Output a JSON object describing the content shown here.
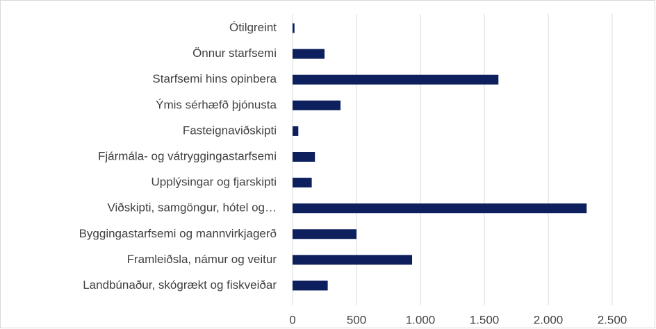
{
  "chart_data": {
    "type": "hbar",
    "categories": [
      "Ótilgreint",
      "Önnur starfsemi",
      "Starfsemi hins opinbera",
      "Ýmis sérhæfð þjónusta",
      "Fasteignaviðskipti",
      "Fjármála- og vátryggingastarfsemi",
      "Upplýsingar og fjarskipti",
      "Viðskipti, samgöngur, hótel og…",
      "Byggingastarfsemi og mannvirkjagerð",
      "Framleiðsla, námur og veitur",
      "Landbúnaður, skógrækt og fiskveiðar"
    ],
    "values": [
      15,
      250,
      1610,
      375,
      45,
      175,
      150,
      2300,
      500,
      935,
      275
    ],
    "color": "#0d1f5c",
    "xlim": [
      0,
      2500
    ],
    "xticks": [
      0,
      500,
      {
        "value": 1000,
        "label": "1.000"
      },
      {
        "value": 1500,
        "label": "1.500"
      },
      {
        "value": 2000,
        "label": "2.000"
      },
      {
        "value": 2500,
        "label": "2.500"
      }
    ],
    "grid": true
  }
}
